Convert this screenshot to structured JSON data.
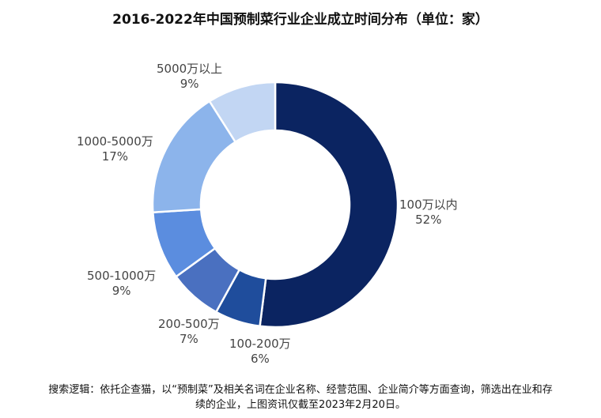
{
  "chart_data": {
    "type": "pie",
    "variant": "donut",
    "title": "2016-2022年中国预制菜行业企业成立时间分布（单位：家）",
    "categories": [
      "100万以内",
      "100-200万",
      "200-500万",
      "500-1000万",
      "1000-5000万",
      "5000万以上"
    ],
    "values": [
      52,
      6,
      7,
      9,
      17,
      9
    ],
    "value_labels": [
      "52%",
      "6%",
      "7%",
      "9%",
      "17%",
      "9%"
    ],
    "colors": [
      "#0b2461",
      "#1f4d9c",
      "#4a70c0",
      "#5b8ddf",
      "#8cb4eb",
      "#c2d6f3"
    ],
    "start": "top",
    "direction": "clockwise"
  },
  "footer": {
    "line1": "搜索逻辑：依托企查猫，以“预制菜”及相关名词在企业名称、经营范围、企业简介等方面查询，筛选出在业和存",
    "line2": "续的企业，上图资讯仅截至2023年2月20日。"
  }
}
